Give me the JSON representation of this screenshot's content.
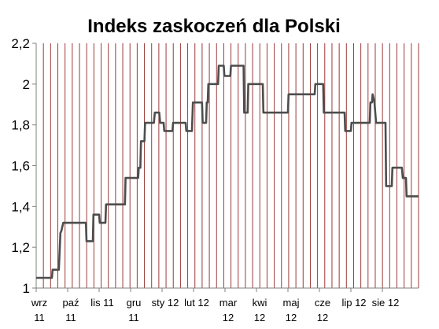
{
  "chart_data": {
    "type": "line",
    "title": "Indeks zaskoczeń dla Polski",
    "xlabel": "",
    "ylabel": "",
    "ylim": [
      1,
      2.2
    ],
    "yticks": [
      1,
      1.2,
      1.4,
      1.6,
      1.8,
      2,
      2.2
    ],
    "ytick_labels": [
      "1",
      "1,2",
      "1,4",
      "1,6",
      "1,8",
      "2",
      "2,2"
    ],
    "grid": "vertical",
    "grid_color": "#9b3a3a",
    "line_color": "#4d4d4d",
    "x_categories": [
      {
        "line1": "wrz",
        "line2": "11"
      },
      {
        "line1": "paź",
        "line2": "11"
      },
      {
        "line1": "lis 11",
        "line2": ""
      },
      {
        "line1": "gru",
        "line2": "11"
      },
      {
        "line1": "sty 12",
        "line2": ""
      },
      {
        "line1": "lut 12",
        "line2": ""
      },
      {
        "line1": "mar",
        "line2": "12"
      },
      {
        "line1": "kwi",
        "line2": "12"
      },
      {
        "line1": "maj",
        "line2": "12"
      },
      {
        "line1": "cze",
        "line2": "12"
      },
      {
        "line1": "lip 12",
        "line2": ""
      },
      {
        "line1": "sie 12",
        "line2": ""
      }
    ],
    "x_range": [
      0,
      12.15
    ],
    "series": [
      {
        "x": [
          0,
          0.5,
          0.52,
          0.72,
          0.77,
          0.8,
          0.86,
          1.0,
          1.02,
          1.58,
          1.6,
          1.8,
          1.82,
          2.0,
          2.02,
          2.2,
          2.22,
          2.4,
          2.42,
          2.82,
          2.84,
          3.24,
          3.26,
          3.31,
          3.33,
          3.44,
          3.46,
          3.72,
          3.74,
          3.77,
          3.79,
          3.91,
          3.94,
          4.05,
          4.07,
          4.33,
          4.35,
          4.75,
          4.77,
          4.95,
          4.98,
          5.27,
          5.29,
          5.4,
          5.42,
          5.45,
          5.47,
          5.78,
          5.8,
          5.96,
          5.98,
          6.17,
          6.19,
          6.59,
          6.61,
          6.72,
          6.74,
          6.85,
          6.87,
          7.2,
          7.22,
          8.0,
          8.02,
          8.2,
          8.22,
          8.85,
          8.87,
          9.12,
          9.14,
          9.8,
          9.82,
          10.0,
          10.02,
          10.6,
          10.62,
          10.67,
          10.69,
          10.75,
          10.8,
          11.1,
          11.12,
          11.3,
          11.32,
          11.62,
          11.65,
          11.75,
          11.77,
          12.15
        ],
        "y": [
          1.05,
          1.05,
          1.09,
          1.09,
          1.27,
          1.28,
          1.32,
          1.32,
          1.32,
          1.32,
          1.23,
          1.23,
          1.36,
          1.36,
          1.32,
          1.32,
          1.41,
          1.41,
          1.41,
          1.41,
          1.54,
          1.54,
          1.59,
          1.59,
          1.72,
          1.72,
          1.81,
          1.81,
          1.81,
          1.86,
          1.86,
          1.86,
          1.81,
          1.81,
          1.77,
          1.77,
          1.81,
          1.81,
          1.77,
          1.77,
          1.91,
          1.91,
          1.81,
          1.81,
          1.91,
          1.91,
          2.0,
          2.0,
          2.09,
          2.09,
          2.04,
          2.04,
          2.09,
          2.09,
          1.86,
          1.86,
          2.0,
          2.0,
          2.0,
          2.0,
          1.86,
          1.86,
          1.95,
          1.95,
          1.95,
          1.95,
          2.0,
          2.0,
          1.86,
          1.86,
          1.77,
          1.77,
          1.81,
          1.81,
          1.91,
          1.91,
          1.95,
          1.91,
          1.81,
          1.81,
          1.5,
          1.5,
          1.59,
          1.59,
          1.54,
          1.54,
          1.45,
          1.45
        ]
      }
    ]
  }
}
